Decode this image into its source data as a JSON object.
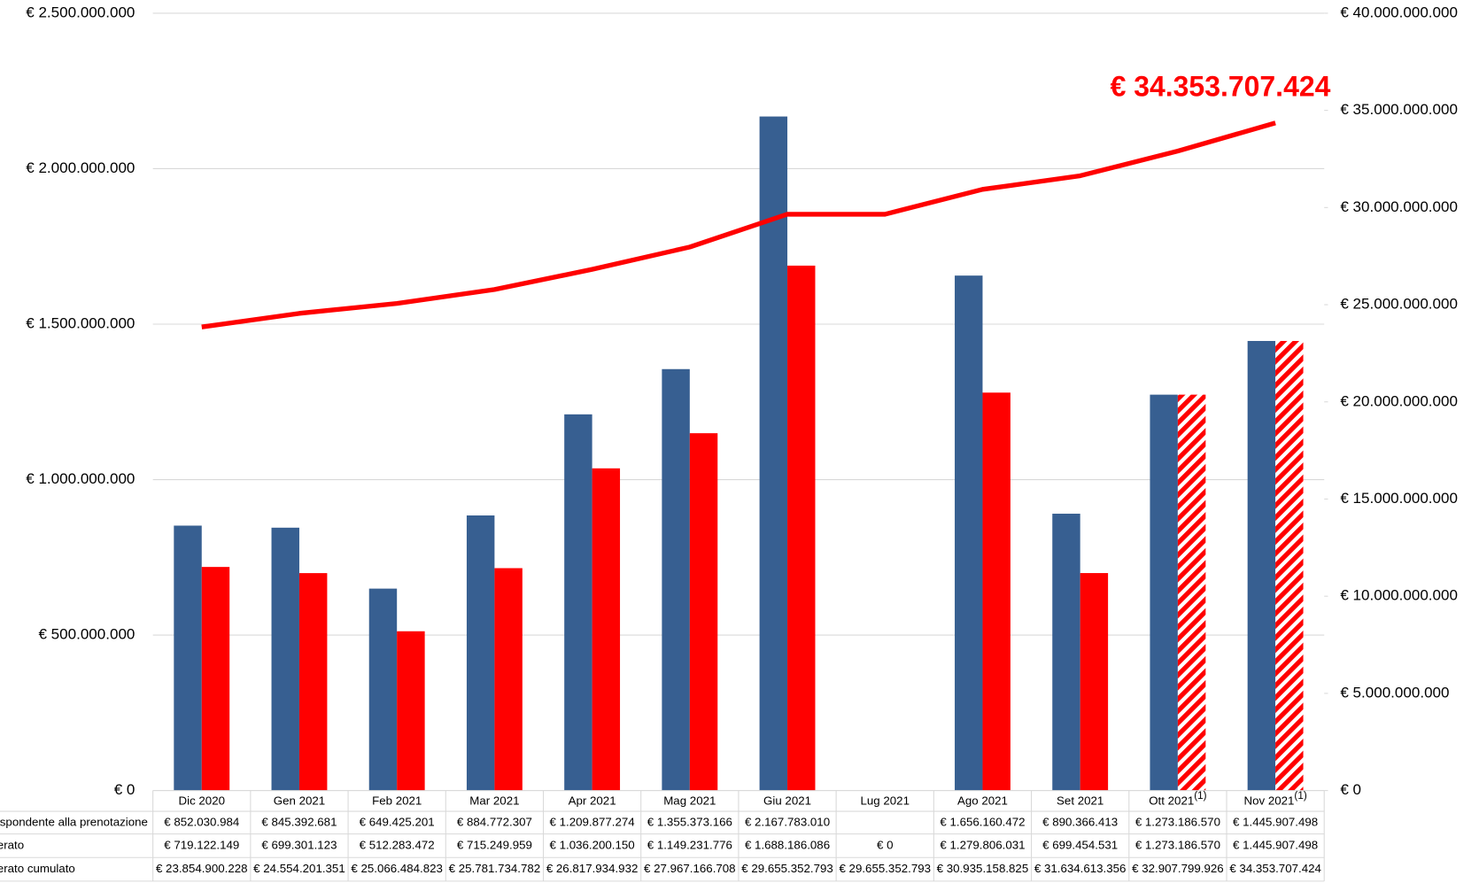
{
  "chart_data": {
    "type": "bar",
    "categories": [
      "Dic 2020",
      "Gen 2021",
      "Feb 2021",
      "Mar 2021",
      "Apr 2021",
      "Mag 2021",
      "Giu 2021",
      "Lug 2021",
      "Ago 2021",
      "Set 2021",
      "Ott 2021",
      "Nov 2021"
    ],
    "category_notes": [
      null,
      null,
      null,
      null,
      null,
      null,
      null,
      null,
      null,
      null,
      "(1)",
      "(1)"
    ],
    "series": [
      {
        "name": "ispondente alla prenotazione",
        "color": "#375f91",
        "values": [
          852030984,
          845392681,
          649425201,
          884772307,
          1209877274,
          1355373166,
          2167783010,
          null,
          1656160472,
          890366413,
          1273186570,
          1445907498
        ],
        "value_labels": [
          "€ 852.030.984",
          "€ 845.392.681",
          "€ 649.425.201",
          "€ 884.772.307",
          "€ 1.209.877.274",
          "€ 1.355.373.166",
          "€ 2.167.783.010",
          null,
          "€ 1.656.160.472",
          "€ 890.366.413",
          "€ 1.273.186.570",
          "€ 1.445.907.498"
        ],
        "hatched": [
          false,
          false,
          false,
          false,
          false,
          false,
          false,
          false,
          false,
          false,
          false,
          false
        ]
      },
      {
        "name": "erato",
        "color": "#ff0000",
        "values": [
          719122149,
          699301123,
          512283472,
          715249959,
          1036200150,
          1149231776,
          1688186086,
          0,
          1279806031,
          699454531,
          1273186570,
          1445907498
        ],
        "value_labels": [
          "€ 719.122.149",
          "€ 699.301.123",
          "€ 512.283.472",
          "€ 715.249.959",
          "€ 1.036.200.150",
          "€ 1.149.231.776",
          "€ 1.688.186.086",
          "€ 0",
          "€ 1.279.806.031",
          "€ 699.454.531",
          "€ 1.273.186.570",
          "€ 1.445.907.498"
        ],
        "hatched": [
          false,
          false,
          false,
          false,
          false,
          false,
          false,
          false,
          false,
          false,
          true,
          true
        ]
      },
      {
        "name": "erato cumulato",
        "color": "#ff0000",
        "type": "line",
        "axis": "y2",
        "values": [
          23854900228,
          24554201351,
          25066484823,
          25781734782,
          26817934932,
          27967166708,
          29655352793,
          29655352793,
          30935158825,
          31634613356,
          32907799926,
          34353707424
        ],
        "value_labels": [
          "€ 23.854.900.228",
          "€ 24.554.201.351",
          "€ 25.066.484.823",
          "€ 25.781.734.782",
          "€ 26.817.934.932",
          "€ 27.967.166.708",
          "€ 29.655.352.793",
          "€ 29.655.352.793",
          "€ 30.935.158.825",
          "€ 31.634.613.356",
          "€ 32.907.799.926",
          "€ 34.353.707.424"
        ]
      }
    ],
    "annotation": "€ 34.353.707.424",
    "ylim": [
      0,
      2500000000
    ],
    "yticks": [
      {
        "value": 0,
        "label": "€ 0"
      },
      {
        "value": 500000000,
        "label": "€ 500.000.000"
      },
      {
        "value": 1000000000,
        "label": "€ 1.000.000.000"
      },
      {
        "value": 1500000000,
        "label": "€ 1.500.000.000"
      },
      {
        "value": 2000000000,
        "label": "€ 2.000.000.000"
      },
      {
        "value": 2500000000,
        "label": "€ 2.500.000.000"
      }
    ],
    "y2lim": [
      0,
      40000000000
    ],
    "y2ticks": [
      {
        "value": 0,
        "label": "€ 0"
      },
      {
        "value": 5000000000,
        "label": "€ 5.000.000.000"
      },
      {
        "value": 10000000000,
        "label": "€ 10.000.000.000"
      },
      {
        "value": 15000000000,
        "label": "€ 15.000.000.000"
      },
      {
        "value": 20000000000,
        "label": "€ 20.000.000.000"
      },
      {
        "value": 25000000000,
        "label": "€ 25.000.000.000"
      },
      {
        "value": 30000000000,
        "label": "€ 30.000.000.000"
      },
      {
        "value": 35000000000,
        "label": "€ 35.000.000.000"
      },
      {
        "value": 40000000000,
        "label": "€ 40.000.000.000"
      }
    ],
    "grid": true
  }
}
